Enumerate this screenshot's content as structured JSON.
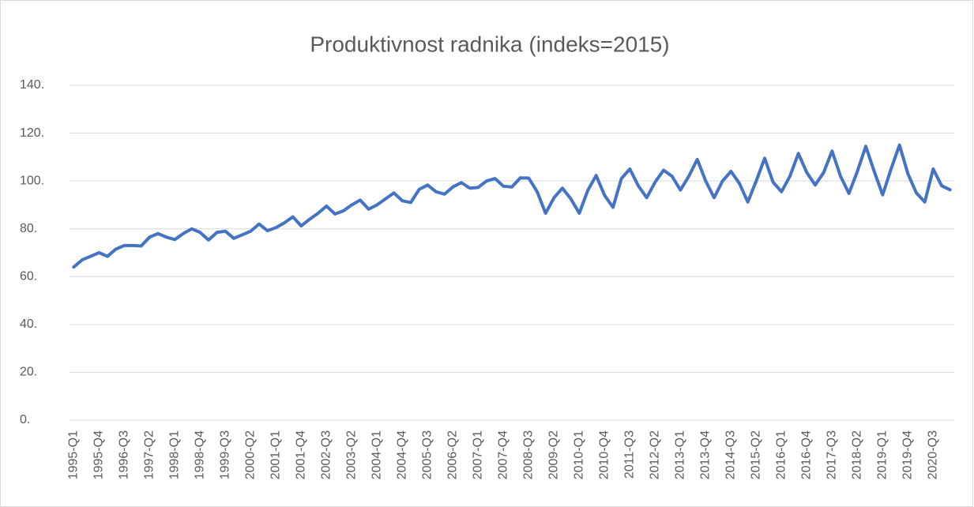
{
  "chart_data": {
    "type": "line",
    "title": "Produktivnost radnika (indeks=2015)",
    "categories": [
      "1995-Q1",
      null,
      null,
      "1995-Q4",
      null,
      null,
      "1996-Q3",
      null,
      null,
      "1997-Q2",
      null,
      null,
      "1998-Q1",
      null,
      null,
      "1998-Q4",
      null,
      null,
      "1999-Q3",
      null,
      null,
      "2000-Q2",
      null,
      null,
      "2001-Q1",
      null,
      null,
      "2001-Q4",
      null,
      null,
      "2002-Q3",
      null,
      null,
      "2003-Q2",
      null,
      null,
      "2004-Q1",
      null,
      null,
      "2004-Q4",
      null,
      null,
      "2005-Q3",
      null,
      null,
      "2006-Q2",
      null,
      null,
      "2007-Q1",
      null,
      null,
      "2007-Q4",
      null,
      null,
      "2008-Q3",
      null,
      null,
      "2009-Q2",
      null,
      null,
      "2010-Q1",
      null,
      null,
      "2010-Q4",
      null,
      null,
      "2011-Q3",
      null,
      null,
      "2012-Q2",
      null,
      null,
      "2013-Q1",
      null,
      null,
      "2013-Q4",
      null,
      null,
      "2014-Q3",
      null,
      null,
      "2015-Q2",
      null,
      null,
      "2016-Q1",
      null,
      null,
      "2016-Q4",
      null,
      null,
      "2017-Q3",
      null,
      null,
      "2018-Q2",
      null,
      null,
      "2019-Q1",
      null,
      null,
      "2019-Q4",
      null,
      null,
      "2020-Q3",
      null,
      null
    ],
    "values": [
      64,
      67,
      68.5,
      70,
      68.5,
      71.5,
      73,
      73,
      72.8,
      76.5,
      78,
      76.5,
      75.5,
      78,
      80,
      78.5,
      75.3,
      78.5,
      79,
      76,
      77.5,
      79,
      82,
      79.2,
      80.5,
      82.5,
      85,
      81.2,
      84,
      86.5,
      89.5,
      86.2,
      87.5,
      90,
      92,
      88.2,
      90,
      92.5,
      95,
      91.7,
      91,
      96.5,
      98.3,
      95.5,
      94.5,
      97.5,
      99.3,
      97,
      97.3,
      100,
      101,
      97.8,
      97.5,
      101.3,
      101.2,
      95.5,
      86.5,
      93,
      97,
      92.5,
      86.5,
      96,
      102.3,
      94,
      89,
      101,
      105,
      98,
      93,
      99.5,
      104.5,
      102,
      96.2,
      102,
      109,
      100,
      93,
      100,
      104,
      99,
      91.2,
      100,
      109.5,
      99.5,
      95.5,
      102,
      111.5,
      103.5,
      98.3,
      103.5,
      112.5,
      102,
      94.8,
      104,
      114.5,
      104,
      94.2,
      105,
      115,
      103,
      95,
      91.2,
      105,
      98,
      96.3
    ],
    "color": "#4472c4",
    "ylim": [
      0,
      140
    ],
    "yticks": [
      {
        "value": 0,
        "label": "0."
      },
      {
        "value": 20,
        "label": "20."
      },
      {
        "value": 40,
        "label": "40."
      },
      {
        "value": 60,
        "label": "60."
      },
      {
        "value": 80,
        "label": "80."
      },
      {
        "value": 100,
        "label": "100."
      },
      {
        "value": 120,
        "label": "120."
      },
      {
        "value": 140,
        "label": "140."
      }
    ],
    "grid": true
  }
}
